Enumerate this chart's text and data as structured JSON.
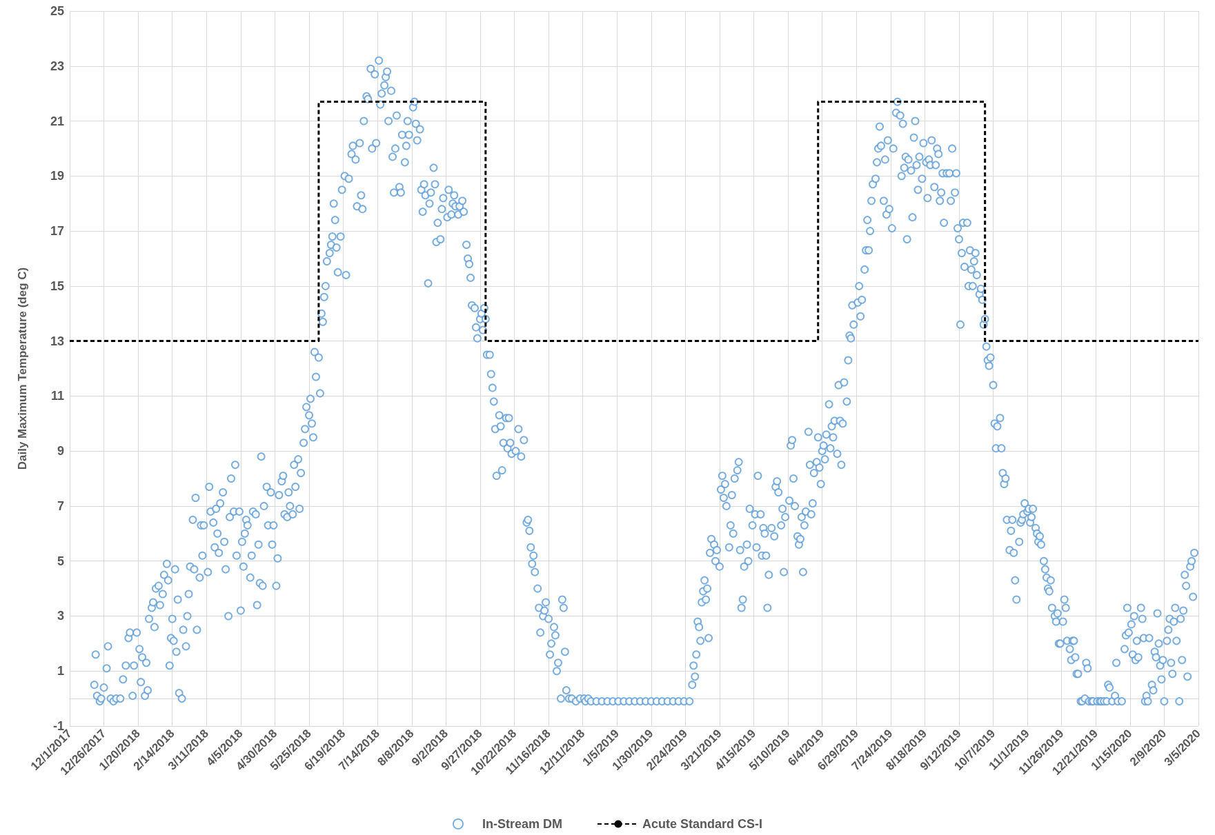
{
  "chart_data": {
    "type": "scatter",
    "ylabel": "Daily Maximum Temperature (deg C)",
    "xlim": [
      "2017-12-01",
      "2020-03-05"
    ],
    "ylim": [
      -1,
      25
    ],
    "xticks": [
      {
        "value": "2017-12-01",
        "label": "12/1/2017"
      },
      {
        "value": "2017-12-26",
        "label": "12/26/2017"
      },
      {
        "value": "2018-01-20",
        "label": "1/20/2018"
      },
      {
        "value": "2018-02-14",
        "label": "2/14/2018"
      },
      {
        "value": "2018-03-11",
        "label": "3/11/2018"
      },
      {
        "value": "2018-04-05",
        "label": "4/5/2018"
      },
      {
        "value": "2018-04-30",
        "label": "4/30/2018"
      },
      {
        "value": "2018-05-25",
        "label": "5/25/2018"
      },
      {
        "value": "2018-06-19",
        "label": "6/19/2018"
      },
      {
        "value": "2018-07-14",
        "label": "7/14/2018"
      },
      {
        "value": "2018-08-08",
        "label": "8/8/2018"
      },
      {
        "value": "2018-09-02",
        "label": "9/2/2018"
      },
      {
        "value": "2018-09-27",
        "label": "9/27/2018"
      },
      {
        "value": "2018-10-22",
        "label": "10/22/2018"
      },
      {
        "value": "2018-11-16",
        "label": "11/16/2018"
      },
      {
        "value": "2018-12-11",
        "label": "12/11/2018"
      },
      {
        "value": "2019-01-05",
        "label": "1/5/2019"
      },
      {
        "value": "2019-01-30",
        "label": "1/30/2019"
      },
      {
        "value": "2019-02-24",
        "label": "2/24/2019"
      },
      {
        "value": "2019-03-21",
        "label": "3/21/2019"
      },
      {
        "value": "2019-04-15",
        "label": "4/15/2019"
      },
      {
        "value": "2019-05-10",
        "label": "5/10/2019"
      },
      {
        "value": "2019-06-04",
        "label": "6/4/2019"
      },
      {
        "value": "2019-06-29",
        "label": "6/29/2019"
      },
      {
        "value": "2019-07-24",
        "label": "7/24/2019"
      },
      {
        "value": "2019-08-18",
        "label": "8/18/2019"
      },
      {
        "value": "2019-09-12",
        "label": "9/12/2019"
      },
      {
        "value": "2019-10-07",
        "label": "10/7/2019"
      },
      {
        "value": "2019-11-01",
        "label": "11/1/2019"
      },
      {
        "value": "2019-11-26",
        "label": "11/26/2019"
      },
      {
        "value": "2019-12-21",
        "label": "12/21/2019"
      },
      {
        "value": "2020-01-15",
        "label": "1/15/2020"
      },
      {
        "value": "2020-02-09",
        "label": "2/9/2020"
      },
      {
        "value": "2020-03-05",
        "label": "3/5/2020"
      }
    ],
    "yticks": [
      -1,
      1,
      3,
      5,
      7,
      9,
      11,
      13,
      15,
      17,
      19,
      21,
      23,
      25
    ],
    "grid": true,
    "legend": "bottom",
    "series": [
      {
        "name": "In-Stream DM",
        "marker": "circle",
        "color": "#5b9bd5",
        "x": [
          "2017-12-19",
          "2017-12-20",
          "2017-12-21",
          "2017-12-23",
          "2017-12-24",
          "2017-12-26",
          "2017-12-28",
          "2017-12-29",
          "2017-12-31",
          "2018-01-02",
          "2018-01-04",
          "2018-01-07",
          "2018-01-09",
          "2018-01-11",
          "2018-01-13",
          "2018-01-14",
          "2018-01-16",
          "2018-01-17",
          "2018-01-19",
          "2018-01-21",
          "2018-01-22",
          "2018-01-23",
          "2018-01-25",
          "2018-01-26",
          "2018-01-27",
          "2018-01-28",
          "2018-01-30",
          "2018-01-31",
          "2018-02-01",
          "2018-02-02",
          "2018-02-04",
          "2018-02-05",
          "2018-02-07",
          "2018-02-08",
          "2018-02-10",
          "2018-02-11",
          "2018-02-12",
          "2018-02-13",
          "2018-02-14",
          "2018-02-15",
          "2018-02-16",
          "2018-02-17",
          "2018-02-18",
          "2018-02-19",
          "2018-02-21",
          "2018-02-22",
          "2018-02-24",
          "2018-02-25",
          "2018-02-26",
          "2018-02-27",
          "2018-03-01",
          "2018-03-02",
          "2018-03-03",
          "2018-03-04",
          "2018-03-06",
          "2018-03-07",
          "2018-03-08",
          "2018-03-09",
          "2018-03-12",
          "2018-03-13",
          "2018-03-14",
          "2018-03-16",
          "2018-03-17",
          "2018-03-18",
          "2018-03-19",
          "2018-03-20",
          "2018-03-21",
          "2018-03-23",
          "2018-03-24",
          "2018-03-25",
          "2018-03-27",
          "2018-03-28",
          "2018-03-29",
          "2018-03-31",
          "2018-04-01",
          "2018-04-02",
          "2018-04-04",
          "2018-04-05",
          "2018-04-06",
          "2018-04-07",
          "2018-04-08",
          "2018-04-09",
          "2018-04-10",
          "2018-04-12",
          "2018-04-13",
          "2018-04-14",
          "2018-04-16",
          "2018-04-17",
          "2018-04-18",
          "2018-04-19",
          "2018-04-20",
          "2018-04-21",
          "2018-04-22",
          "2018-04-24",
          "2018-04-25",
          "2018-04-27",
          "2018-04-28",
          "2018-04-29",
          "2018-05-01",
          "2018-05-02",
          "2018-05-03",
          "2018-05-05",
          "2018-05-06",
          "2018-05-07",
          "2018-05-09",
          "2018-05-10",
          "2018-05-11",
          "2018-05-13",
          "2018-05-14",
          "2018-05-15",
          "2018-05-17",
          "2018-05-18",
          "2018-05-19",
          "2018-05-21",
          "2018-05-22",
          "2018-05-23",
          "2018-05-25",
          "2018-05-26",
          "2018-05-27",
          "2018-05-28",
          "2018-05-29",
          "2018-05-30",
          "2018-06-01",
          "2018-06-02",
          "2018-06-03",
          "2018-06-04",
          "2018-06-05",
          "2018-06-06",
          "2018-06-07",
          "2018-06-09",
          "2018-06-10",
          "2018-06-11",
          "2018-06-12",
          "2018-06-13",
          "2018-06-14",
          "2018-06-15",
          "2018-06-17",
          "2018-06-18",
          "2018-06-20",
          "2018-06-21",
          "2018-06-23",
          "2018-06-25",
          "2018-06-26",
          "2018-06-28",
          "2018-06-29",
          "2018-07-01",
          "2018-07-02",
          "2018-07-03",
          "2018-07-04",
          "2018-07-06",
          "2018-07-07",
          "2018-07-09",
          "2018-07-10",
          "2018-07-12",
          "2018-07-13",
          "2018-07-15",
          "2018-07-16",
          "2018-07-17",
          "2018-07-19",
          "2018-07-20",
          "2018-07-21",
          "2018-07-22",
          "2018-07-24",
          "2018-07-25",
          "2018-07-26",
          "2018-07-27",
          "2018-07-28",
          "2018-07-30",
          "2018-07-31",
          "2018-08-01",
          "2018-08-03",
          "2018-08-04",
          "2018-08-05",
          "2018-08-06",
          "2018-08-09",
          "2018-08-10",
          "2018-08-11",
          "2018-08-12",
          "2018-08-14",
          "2018-08-15",
          "2018-08-16",
          "2018-08-17",
          "2018-08-18",
          "2018-08-20",
          "2018-08-21",
          "2018-08-22",
          "2018-08-24",
          "2018-08-25",
          "2018-08-26",
          "2018-08-27",
          "2018-08-29",
          "2018-08-30",
          "2018-08-31",
          "2018-09-03",
          "2018-09-04",
          "2018-09-06",
          "2018-09-07",
          "2018-09-08",
          "2018-09-09",
          "2018-09-11",
          "2018-09-12",
          "2018-09-14",
          "2018-09-15",
          "2018-09-17",
          "2018-09-18",
          "2018-09-19",
          "2018-09-20",
          "2018-09-21",
          "2018-09-23",
          "2018-09-24",
          "2018-09-25",
          "2018-09-27",
          "2018-09-28",
          "2018-09-29",
          "2018-09-30",
          "2018-10-01",
          "2018-10-02",
          "2018-10-04",
          "2018-10-05",
          "2018-10-06",
          "2018-10-07",
          "2018-10-08",
          "2018-10-09",
          "2018-10-11",
          "2018-10-12",
          "2018-10-13",
          "2018-10-14",
          "2018-10-16",
          "2018-10-17",
          "2018-10-18",
          "2018-10-19",
          "2018-10-20",
          "2018-10-23",
          "2018-10-25",
          "2018-10-27",
          "2018-10-29",
          "2018-10-31",
          "2018-11-01",
          "2018-11-02",
          "2018-11-03",
          "2018-11-04",
          "2018-11-05",
          "2018-11-06",
          "2018-11-08",
          "2018-11-09",
          "2018-11-10",
          "2018-11-12",
          "2018-11-13",
          "2018-11-14",
          "2018-11-16",
          "2018-11-17",
          "2018-11-18",
          "2018-11-20",
          "2018-11-21",
          "2018-11-22",
          "2018-11-23",
          "2018-11-25",
          "2018-11-26",
          "2018-11-27",
          "2018-11-28",
          "2018-11-29",
          "2018-12-01",
          "2018-12-03",
          "2018-12-06",
          "2018-12-09",
          "2018-12-12",
          "2018-12-13",
          "2018-12-15",
          "2018-12-17",
          "2018-12-21",
          "2018-12-25",
          "2018-12-29",
          "2019-01-02",
          "2019-01-06",
          "2019-01-10",
          "2019-01-14",
          "2019-01-18",
          "2019-01-22",
          "2019-01-26",
          "2019-01-30",
          "2019-02-03",
          "2019-02-07",
          "2019-02-11",
          "2019-02-15",
          "2019-02-19",
          "2019-02-23",
          "2019-02-27",
          "2019-03-01",
          "2019-03-02",
          "2019-03-03",
          "2019-03-04",
          "2019-03-05",
          "2019-03-06",
          "2019-03-07",
          "2019-03-08",
          "2019-03-09",
          "2019-03-10",
          "2019-03-11",
          "2019-03-12",
          "2019-03-13",
          "2019-03-14",
          "2019-03-15",
          "2019-03-17",
          "2019-03-18",
          "2019-03-19",
          "2019-03-21",
          "2019-03-22",
          "2019-03-23",
          "2019-03-24",
          "2019-03-25",
          "2019-03-26",
          "2019-03-28",
          "2019-03-29",
          "2019-03-30",
          "2019-03-31",
          "2019-04-01",
          "2019-04-03",
          "2019-04-04",
          "2019-04-05",
          "2019-04-06",
          "2019-04-07",
          "2019-04-08",
          "2019-04-10",
          "2019-04-11",
          "2019-04-12",
          "2019-04-14",
          "2019-04-16",
          "2019-04-17",
          "2019-04-18",
          "2019-04-20",
          "2019-04-21",
          "2019-04-22",
          "2019-04-23",
          "2019-04-24",
          "2019-04-25",
          "2019-04-26",
          "2019-04-28",
          "2019-04-30",
          "2019-05-01",
          "2019-05-02",
          "2019-05-03",
          "2019-05-05",
          "2019-05-06",
          "2019-05-07",
          "2019-05-08",
          "2019-05-11",
          "2019-05-12",
          "2019-05-13",
          "2019-05-14",
          "2019-05-15",
          "2019-05-17",
          "2019-05-18",
          "2019-05-19",
          "2019-05-20",
          "2019-05-21",
          "2019-05-22",
          "2019-05-23",
          "2019-05-25",
          "2019-05-26",
          "2019-05-27",
          "2019-05-28",
          "2019-05-29",
          "2019-05-31",
          "2019-06-01",
          "2019-06-02",
          "2019-06-03",
          "2019-06-04",
          "2019-06-05",
          "2019-06-06",
          "2019-06-07",
          "2019-06-09",
          "2019-06-10",
          "2019-06-11",
          "2019-06-12",
          "2019-06-13",
          "2019-06-15",
          "2019-06-16",
          "2019-06-17",
          "2019-06-18",
          "2019-06-19",
          "2019-06-20",
          "2019-06-22",
          "2019-06-23",
          "2019-06-24",
          "2019-06-25",
          "2019-06-26",
          "2019-06-27",
          "2019-06-30",
          "2019-07-01",
          "2019-07-02",
          "2019-07-03",
          "2019-07-05",
          "2019-07-06",
          "2019-07-07",
          "2019-07-08",
          "2019-07-09",
          "2019-07-10",
          "2019-07-11",
          "2019-07-13",
          "2019-07-14",
          "2019-07-15",
          "2019-07-16",
          "2019-07-17",
          "2019-07-19",
          "2019-07-20",
          "2019-07-21",
          "2019-07-22",
          "2019-07-23",
          "2019-07-25",
          "2019-07-26",
          "2019-07-28",
          "2019-07-29",
          "2019-07-31",
          "2019-08-01",
          "2019-08-02",
          "2019-08-03",
          "2019-08-04",
          "2019-08-05",
          "2019-08-06",
          "2019-08-08",
          "2019-08-09",
          "2019-08-10",
          "2019-08-11",
          "2019-08-12",
          "2019-08-13",
          "2019-08-14",
          "2019-08-16",
          "2019-08-17",
          "2019-08-19",
          "2019-08-20",
          "2019-08-21",
          "2019-08-22",
          "2019-08-23",
          "2019-08-25",
          "2019-08-26",
          "2019-08-27",
          "2019-08-28",
          "2019-08-29",
          "2019-08-30",
          "2019-08-31",
          "2019-09-01",
          "2019-09-03",
          "2019-09-05",
          "2019-09-06",
          "2019-09-07",
          "2019-09-09",
          "2019-09-10",
          "2019-09-11",
          "2019-09-12",
          "2019-09-13",
          "2019-09-14",
          "2019-09-15",
          "2019-09-16",
          "2019-09-18",
          "2019-09-19",
          "2019-09-20",
          "2019-09-21",
          "2019-09-22",
          "2019-09-23",
          "2019-09-24",
          "2019-09-25",
          "2019-09-27",
          "2019-09-28",
          "2019-09-29",
          "2019-09-30",
          "2019-10-01",
          "2019-10-02",
          "2019-10-03",
          "2019-10-04",
          "2019-10-05",
          "2019-10-07",
          "2019-10-08",
          "2019-10-09",
          "2019-10-10",
          "2019-10-12",
          "2019-10-13",
          "2019-10-14",
          "2019-10-15",
          "2019-10-16",
          "2019-10-17",
          "2019-10-19",
          "2019-10-20",
          "2019-10-21",
          "2019-10-22",
          "2019-10-23",
          "2019-10-24",
          "2019-10-26",
          "2019-10-27",
          "2019-10-28",
          "2019-10-29",
          "2019-10-30",
          "2019-11-01",
          "2019-11-02",
          "2019-11-03",
          "2019-11-04",
          "2019-11-05",
          "2019-11-07",
          "2019-11-08",
          "2019-11-09",
          "2019-11-10",
          "2019-11-11",
          "2019-11-13",
          "2019-11-14",
          "2019-11-15",
          "2019-11-16",
          "2019-11-17",
          "2019-11-18",
          "2019-11-19",
          "2019-11-21",
          "2019-11-22",
          "2019-11-23",
          "2019-11-24",
          "2019-11-25",
          "2019-11-27",
          "2019-11-28",
          "2019-11-29",
          "2019-11-30",
          "2019-12-02",
          "2019-12-03",
          "2019-12-04",
          "2019-12-05",
          "2019-12-06",
          "2019-12-07",
          "2019-12-08",
          "2019-12-10",
          "2019-12-11",
          "2019-12-13",
          "2019-12-14",
          "2019-12-15",
          "2019-12-16",
          "2019-12-18",
          "2019-12-19",
          "2019-12-22",
          "2019-12-24",
          "2019-12-25",
          "2019-12-27",
          "2019-12-29",
          "2019-12-30",
          "2019-12-31",
          "2020-01-02",
          "2020-01-04",
          "2020-01-05",
          "2020-01-06",
          "2020-01-09",
          "2020-01-11",
          "2020-01-12",
          "2020-01-13",
          "2020-01-14",
          "2020-01-16",
          "2020-01-17",
          "2020-01-18",
          "2020-01-19",
          "2020-01-20",
          "2020-01-21",
          "2020-01-23",
          "2020-01-24",
          "2020-01-25",
          "2020-01-26",
          "2020-01-27",
          "2020-01-28",
          "2020-01-29",
          "2020-01-31",
          "2020-02-01",
          "2020-02-02",
          "2020-02-03",
          "2020-02-04",
          "2020-02-05",
          "2020-02-06",
          "2020-02-07",
          "2020-02-08",
          "2020-02-09",
          "2020-02-11",
          "2020-02-12",
          "2020-02-13",
          "2020-02-14",
          "2020-02-15",
          "2020-02-16",
          "2020-02-17",
          "2020-02-18",
          "2020-02-20",
          "2020-02-21",
          "2020-02-22",
          "2020-02-23",
          "2020-02-24",
          "2020-02-25",
          "2020-02-26",
          "2020-02-28",
          "2020-02-29",
          "2020-03-01",
          "2020-03-02"
        ],
        "values": [
          0.5,
          1.6,
          0.1,
          -0.1,
          0,
          0.4,
          1.1,
          1.9,
          0,
          -0.1,
          0,
          0,
          0.7,
          1.2,
          2.2,
          2.4,
          0.1,
          1.2,
          2.4,
          1.8,
          0.6,
          1.5,
          0.1,
          1.3,
          0.3,
          2.9,
          3.3,
          3.5,
          2.6,
          4.0,
          4.1,
          3.4,
          3.8,
          4.5,
          4.9,
          4.3,
          1.2,
          2.2,
          2.9,
          2.1,
          4.7,
          1.7,
          3.6,
          0.2,
          0,
          2.5,
          1.9,
          3.0,
          3.8,
          4.8,
          6.5,
          4.7,
          7.3,
          2.5,
          4.4,
          6.3,
          5.2,
          6.3,
          4.6,
          7.7,
          6.8,
          6.4,
          5.5,
          6.9,
          6.0,
          5.3,
          7.1,
          7.5,
          5.7,
          4.7,
          3.0,
          6.6,
          8.0,
          6.8,
          8.5,
          5.2,
          6.8,
          3.2,
          5.7,
          4.8,
          6.0,
          6.5,
          6.3,
          4.4,
          5.2,
          6.8,
          6.7,
          3.4,
          5.6,
          4.2,
          8.8,
          4.1,
          7.0,
          7.7,
          6.3,
          7.5,
          5.6,
          6.3,
          4.1,
          5.1,
          7.4,
          7.9,
          8.1,
          6.7,
          6.6,
          7.5,
          7.0,
          6.7,
          8.5,
          7.7,
          8.7,
          6.9,
          8.2,
          9.3,
          9.8,
          10.6,
          10.3,
          10.9,
          10.0,
          9.5,
          12.6,
          11.7,
          12.4,
          11.1,
          14.0,
          13.7,
          14.6,
          15.0,
          15.9,
          16.2,
          16.5,
          16.8,
          18.0,
          17.4,
          16.4,
          15.5,
          16.8,
          18.5,
          19.0,
          15.4,
          18.9,
          19.8,
          20.1,
          19.6,
          17.9,
          20.2,
          18.3,
          17.8,
          21.0,
          21.9,
          21.8,
          22.9,
          20.0,
          22.7,
          20.2,
          23.2,
          21.6,
          22.0,
          22.3,
          22.6,
          22.8,
          21.0,
          22.1,
          19.7,
          18.4,
          20.0,
          21.2,
          18.6,
          18.4,
          20.5,
          19.5,
          20.1,
          21.0,
          20.5,
          21.5,
          21.7,
          20.9,
          20.3,
          20.7,
          18.5,
          17.7,
          18.7,
          18.3,
          15.1,
          18.0,
          18.4,
          19.3,
          18.7,
          16.6,
          17.3,
          16.7,
          17.8,
          18.2,
          17.5,
          18.5,
          17.6,
          18.0,
          18.3,
          17.9,
          17.6,
          17.9,
          18.1,
          17.7,
          16.5,
          16.0,
          15.8,
          15.3,
          14.3,
          14.2,
          13.5,
          13.1,
          13.8,
          14.0,
          13.4,
          14.2,
          13.8,
          12.5,
          12.5,
          11.8,
          11.3,
          10.8,
          9.8,
          8.1,
          10.3,
          9.9,
          8.3,
          9.3,
          10.2,
          9.1,
          10.2,
          9.3,
          8.9,
          9.0,
          9.8,
          8.8,
          9.4,
          6.4,
          6.5,
          6.1,
          5.5,
          4.9,
          5.2,
          4.6,
          4.0,
          3.3,
          2.4,
          3.0,
          3.2,
          3.5,
          2.9,
          1.6,
          2.0,
          2.6,
          2.3,
          1.0,
          1.3,
          0,
          3.6,
          3.3,
          1.7,
          0.3,
          0,
          0,
          -0.1,
          0,
          0,
          -0.1,
          0,
          -0.1,
          -0.1,
          -0.1,
          -0.1,
          -0.1,
          -0.1,
          -0.1,
          -0.1,
          -0.1,
          -0.1,
          -0.1,
          -0.1,
          -0.1,
          -0.1,
          -0.1,
          -0.1,
          -0.1,
          -0.1,
          -0.1,
          0.5,
          1.2,
          0.8,
          1.6,
          2.8,
          2.6,
          2.1,
          3.5,
          3.9,
          4.3,
          3.6,
          4.0,
          2.2,
          5.3,
          5.8,
          5.6,
          5.0,
          5.4,
          4.8,
          7.6,
          8.1,
          7.3,
          7.8,
          7.0,
          5.5,
          6.3,
          7.4,
          6.0,
          8.0,
          8.3,
          8.6,
          5.4,
          3.3,
          3.6,
          4.8,
          5.6,
          5.0,
          6.9,
          6.3,
          6.7,
          5.5,
          8.1,
          6.7,
          5.2,
          6.2,
          6.0,
          5.2,
          3.3,
          4.5,
          6.2,
          5.9,
          7.7,
          7.9,
          7.5,
          6.3,
          6.9,
          4.6,
          6.6,
          7.2,
          9.2,
          9.4,
          8.0,
          7.0,
          5.9,
          5.6,
          5.8,
          6.6,
          4.6,
          6.3,
          6.8,
          9.7,
          8.5,
          6.7,
          7.1,
          8.2,
          8.6,
          9.5,
          8.4,
          7.8,
          9.0,
          9.2,
          8.7,
          9.6,
          10.7,
          9.1,
          9.9,
          9.5,
          10.1,
          8.9,
          11.4,
          10.1,
          8.5,
          10.0,
          11.5,
          10.8,
          12.3,
          13.2,
          13.1,
          14.3,
          13.6,
          14.4,
          15.0,
          13.9,
          14.5,
          15.6,
          16.3,
          17.4,
          16.3,
          17.0,
          18.1,
          18.7,
          18.9,
          19.5,
          20.0,
          20.8,
          20.1,
          18.1,
          19.6,
          17.6,
          20.3,
          17.8,
          17.1,
          20.0,
          21.3,
          21.7,
          21.2,
          19.0,
          20.9,
          19.3,
          19.7,
          16.7,
          19.6,
          19.2,
          17.5,
          20.4,
          21.0,
          19.4,
          18.5,
          19.7,
          18.9,
          20.2,
          19.5,
          18.2,
          19.6,
          19.4,
          20.3,
          18.6,
          19.4,
          20.0,
          19.8,
          18.1,
          18.4,
          19.1,
          17.3,
          19.1,
          19.1,
          18.1,
          20.0,
          18.4,
          19.1,
          17.1,
          16.7,
          13.6,
          16.2,
          17.3,
          15.7,
          17.3,
          15.0,
          16.3,
          15.6,
          15.0,
          15.9,
          16.2,
          15.4,
          14.7,
          14.9,
          14.5,
          13.6,
          13.8,
          12.8,
          12.3,
          12.1,
          12.4,
          11.4,
          10.0,
          9.1,
          9.9,
          10.2,
          9.1,
          8.2,
          7.8,
          8.0,
          6.5,
          5.4,
          6.1,
          6.5,
          5.3,
          4.3,
          3.6,
          5.7,
          6.4,
          6.5,
          6.7,
          7.1,
          6.8,
          6.9,
          6.4,
          6.6,
          6.9,
          6.2,
          6.0,
          5.7,
          5.9,
          5.6,
          5.0,
          4.7,
          4.4,
          4.0,
          3.9,
          4.3,
          3.3,
          3.0,
          2.8,
          3.1,
          2.0,
          2.0,
          2.8,
          3.6,
          3.3,
          2.1,
          1.8,
          1.4,
          2.1,
          2.1,
          1.5,
          0.9,
          0.9,
          -0.1,
          -0.1,
          0,
          1.3,
          1.1,
          -0.1,
          -0.1,
          -0.1,
          -0.1,
          -0.1,
          -0.1,
          -0.1,
          -0.1,
          0.5,
          0.4,
          -0.1,
          0.1,
          1.3,
          -0.1,
          -0.1,
          1.8,
          2.3,
          3.3,
          2.4,
          2.7,
          1.6,
          3.0,
          1.4,
          2.1,
          1.5,
          3.3,
          2.9,
          2.2,
          -0.1,
          0.1,
          -0.1,
          2.2,
          0.5,
          0.3,
          1.7,
          1.5,
          3.1,
          2.0,
          1.2,
          0.7,
          1.4,
          -0.1,
          2.1,
          2.5,
          2.9,
          1.3,
          0.9,
          2.8,
          3.3,
          2.1,
          -0.1,
          2.9,
          1.4,
          3.2,
          4.5,
          4.1,
          0.8,
          4.8,
          5.0,
          3.7,
          5.3
        ]
      },
      {
        "name": "Acute Standard CS-I",
        "type": "line",
        "marker": "none",
        "line_style": "dashed",
        "color": "#000000",
        "x": [
          "2017-12-01",
          "2018-06-01",
          "2018-06-01",
          "2018-10-01",
          "2018-10-01",
          "2019-06-01",
          "2019-06-01",
          "2019-10-01",
          "2019-10-01",
          "2020-03-05"
        ],
        "values": [
          13,
          13,
          21.7,
          21.7,
          13,
          13,
          21.7,
          21.7,
          13,
          13
        ]
      }
    ]
  }
}
